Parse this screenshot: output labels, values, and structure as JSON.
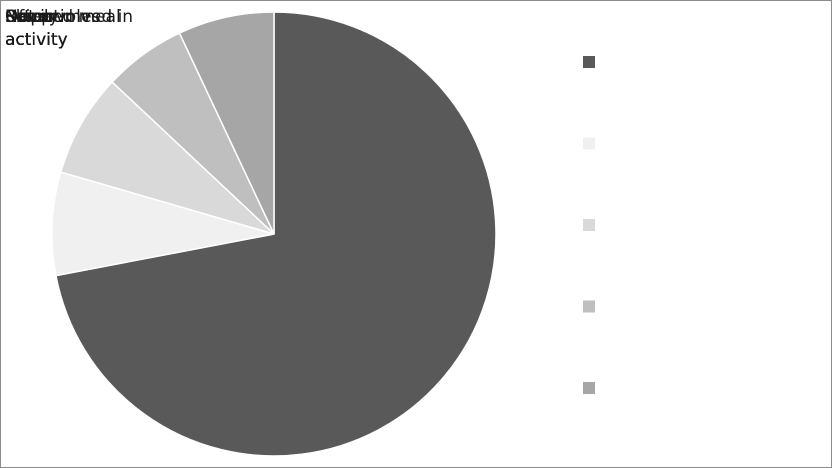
{
  "chart_data": {
    "type": "pie",
    "title": "",
    "slices": [
      {
        "label": "",
        "value": 72.0,
        "color": "#595959"
      },
      {
        "label": "",
        "value": 7.5,
        "color": "#f0f0f0"
      },
      {
        "label": "",
        "value": 7.5,
        "color": "#d9d9d9"
      },
      {
        "label": "",
        "value": 6.0,
        "color": "#bfbfbf"
      },
      {
        "label": "",
        "value": 7.0,
        "color": "#a6a6a6"
      }
    ],
    "overlapping_label_lines": [
      [
        "Rarely",
        "Never",
        "Sometimes",
        "Often",
        "Skipped meal",
        "Not involved in"
      ],
      [
        "activity",
        "activity",
        "activity",
        "activity",
        "activity"
      ]
    ],
    "legend": {
      "position": "right",
      "entries": [
        "",
        "",
        "",
        "",
        ""
      ]
    }
  }
}
